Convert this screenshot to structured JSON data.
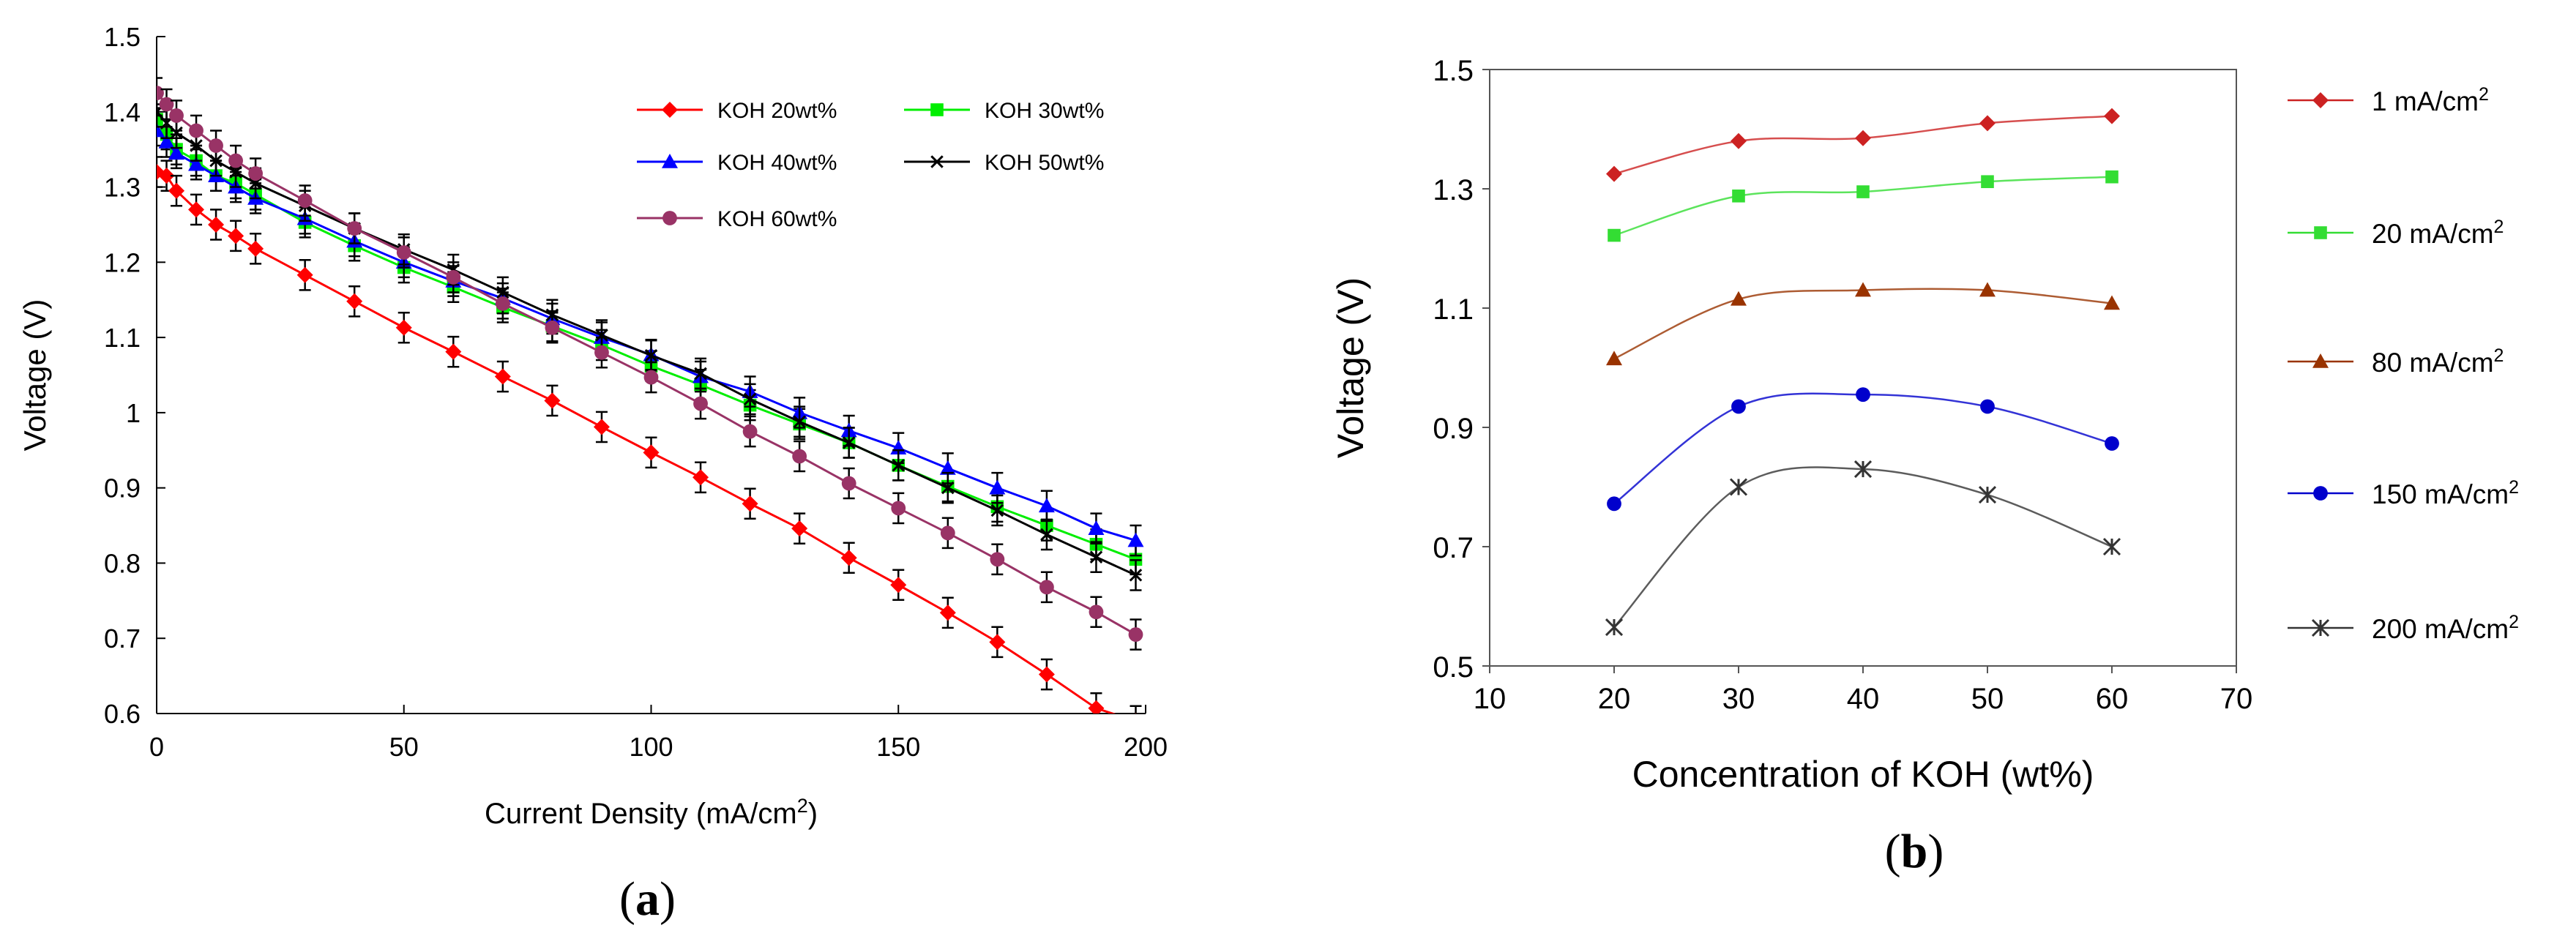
{
  "chart_data": [
    {
      "panel": "a",
      "panel_label": "a",
      "type": "line",
      "title": "",
      "xlabel": "Current Density (mA/cm",
      "xlabel_sup": "2",
      "xlabel_end": ")",
      "ylabel": "Voltage (V)",
      "xlim": [
        0,
        200
      ],
      "ylim": [
        0.6,
        1.5
      ],
      "grid": false,
      "legend_position": "top-right",
      "xticks": [
        "0",
        "50",
        "100",
        "150",
        "200"
      ],
      "yticks": [
        "0.6",
        "0.7",
        "0.8",
        "0.9",
        "1",
        "1.1",
        "1.2",
        "1.3",
        "1.4",
        "1.5"
      ],
      "x": [
        0,
        2,
        4,
        8,
        12,
        16,
        20,
        30,
        40,
        50,
        60,
        70,
        80,
        90,
        100,
        110,
        120,
        130,
        140,
        150,
        160,
        170,
        180,
        190,
        198
      ],
      "error": 0.02,
      "series": [
        {
          "name": "KOH 20wt%",
          "color": "#ff0000",
          "marker": "diamond",
          "values": [
            1.32,
            1.315,
            1.295,
            1.27,
            1.25,
            1.235,
            1.218,
            1.183,
            1.148,
            1.113,
            1.081,
            1.048,
            1.016,
            0.981,
            0.947,
            0.914,
            0.879,
            0.846,
            0.807,
            0.771,
            0.734,
            0.695,
            0.652,
            0.607,
            0.59
          ]
        },
        {
          "name": "KOH 30wt%",
          "color": "#00ee00",
          "marker": "square",
          "values": [
            1.39,
            1.37,
            1.35,
            1.335,
            1.315,
            1.305,
            1.29,
            1.253,
            1.222,
            1.193,
            1.167,
            1.14,
            1.115,
            1.09,
            1.062,
            1.037,
            1.01,
            0.985,
            0.96,
            0.93,
            0.902,
            0.875,
            0.85,
            0.825,
            0.805
          ]
        },
        {
          "name": "KOH 40wt%",
          "color": "#0000ff",
          "marker": "triangle",
          "values": [
            1.375,
            1.36,
            1.345,
            1.33,
            1.315,
            1.3,
            1.285,
            1.258,
            1.228,
            1.2,
            1.175,
            1.152,
            1.125,
            1.1,
            1.077,
            1.048,
            1.028,
            1.0,
            0.976,
            0.953,
            0.926,
            0.9,
            0.876,
            0.846,
            0.83
          ]
        },
        {
          "name": "KOH 50wt%",
          "color": "#000000",
          "marker": "x",
          "values": [
            1.4,
            1.385,
            1.372,
            1.355,
            1.335,
            1.32,
            1.305,
            1.275,
            1.245,
            1.217,
            1.19,
            1.16,
            1.13,
            1.103,
            1.076,
            1.052,
            1.018,
            0.988,
            0.96,
            0.93,
            0.9,
            0.87,
            0.838,
            0.808,
            0.784
          ]
        },
        {
          "name": "KOH 60wt%",
          "color": "#993366",
          "marker": "circle",
          "values": [
            1.425,
            1.41,
            1.395,
            1.375,
            1.355,
            1.335,
            1.318,
            1.282,
            1.245,
            1.213,
            1.18,
            1.145,
            1.113,
            1.08,
            1.047,
            1.012,
            0.975,
            0.942,
            0.906,
            0.873,
            0.84,
            0.805,
            0.768,
            0.735,
            0.705
          ]
        }
      ]
    },
    {
      "panel": "b",
      "panel_label": "b",
      "type": "line",
      "title": "",
      "xlabel": "Concentration of KOH (wt%)",
      "ylabel": "Voltage (V)",
      "xlim": [
        10,
        70
      ],
      "ylim": [
        0.5,
        1.5
      ],
      "grid": false,
      "legend_position": "right",
      "xticks": [
        "10",
        "20",
        "30",
        "40",
        "50",
        "60",
        "70"
      ],
      "yticks": [
        "0.5",
        "0.7",
        "0.9",
        "1.1",
        "1.3",
        "1.5"
      ],
      "x": [
        20,
        30,
        40,
        50,
        60
      ],
      "series": [
        {
          "name": "1 mA/cm",
          "sup": "2",
          "color": "#cc2222",
          "marker": "diamond",
          "values": [
            1.325,
            1.38,
            1.385,
            1.41,
            1.422
          ]
        },
        {
          "name": "20 mA/cm",
          "sup": "2",
          "color": "#33dd33",
          "marker": "square",
          "values": [
            1.222,
            1.288,
            1.295,
            1.312,
            1.32
          ]
        },
        {
          "name": "80 mA/cm",
          "sup": "2",
          "color": "#993300",
          "marker": "triangle",
          "values": [
            1.015,
            1.115,
            1.13,
            1.13,
            1.108
          ]
        },
        {
          "name": "150 mA/cm",
          "sup": "2",
          "color": "#0000cc",
          "marker": "circle",
          "values": [
            0.772,
            0.935,
            0.955,
            0.935,
            0.873
          ]
        },
        {
          "name": "200 mA/cm",
          "sup": "2",
          "color": "#333333",
          "marker": "asterisk",
          "values": [
            0.565,
            0.8,
            0.83,
            0.787,
            0.7
          ]
        }
      ]
    }
  ]
}
